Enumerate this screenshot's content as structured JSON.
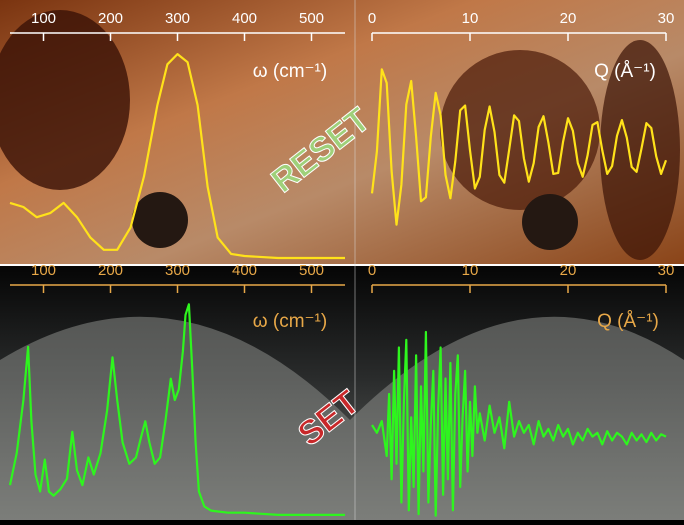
{
  "chart_data": [
    {
      "type": "line",
      "x_label": "ω (cm⁻¹)",
      "annotation": "RESET",
      "annotation_color": "#9fd07a",
      "color": "#ffe21a",
      "label_color": "#ffffff",
      "xlim": [
        50,
        550
      ],
      "xticks": [
        100,
        200,
        300,
        400,
        500
      ],
      "ylim": [
        0,
        1.02
      ],
      "x": [
        50,
        70,
        90,
        110,
        130,
        150,
        170,
        190,
        210,
        230,
        250,
        270,
        285,
        300,
        315,
        330,
        345,
        360,
        380,
        400,
        450,
        500,
        550
      ],
      "values": [
        0.27,
        0.25,
        0.2,
        0.22,
        0.27,
        0.2,
        0.1,
        0.04,
        0.04,
        0.15,
        0.4,
        0.75,
        0.95,
        1.0,
        0.96,
        0.75,
        0.35,
        0.1,
        0.02,
        0.01,
        0.0,
        0.0,
        0.0
      ]
    },
    {
      "type": "line",
      "x_label": "Q (Å⁻¹)",
      "color": "#ffe21a",
      "label_color": "#ffffff",
      "xlim": [
        0,
        30
      ],
      "xticks": [
        0,
        10,
        20,
        30
      ],
      "ylim": [
        -1.1,
        1.1
      ],
      "x": [
        0,
        0.5,
        1,
        1.5,
        2,
        2.5,
        3,
        3.5,
        4,
        4.5,
        5,
        5.5,
        6,
        6.5,
        7,
        7.5,
        8,
        8.5,
        9,
        9.5,
        10,
        10.5,
        11,
        11.5,
        12,
        12.5,
        13,
        13.5,
        14,
        14.5,
        15,
        15.5,
        16,
        16.5,
        17,
        17.5,
        18,
        18.5,
        19,
        19.5,
        20,
        20.5,
        21,
        21.5,
        22,
        22.5,
        23,
        23.5,
        24,
        24.5,
        25,
        25.5,
        26,
        26.5,
        27,
        27.5,
        28,
        28.5,
        29,
        29.5,
        30
      ],
      "values": [
        -0.47,
        -0.04,
        0.8,
        0.66,
        -0.24,
        -0.79,
        -0.38,
        0.44,
        0.68,
        0.11,
        -0.55,
        -0.51,
        0.11,
        0.56,
        0.33,
        -0.28,
        -0.52,
        -0.14,
        0.38,
        0.43,
        -0.03,
        -0.42,
        -0.3,
        0.18,
        0.42,
        0.16,
        -0.28,
        -0.36,
        -0.02,
        0.33,
        0.27,
        -0.11,
        -0.35,
        -0.16,
        0.21,
        0.32,
        0.05,
        -0.27,
        -0.26,
        0.06,
        0.3,
        0.17,
        -0.16,
        -0.3,
        -0.08,
        0.23,
        0.26,
        -0.03,
        -0.27,
        -0.19,
        0.12,
        0.28,
        0.1,
        -0.2,
        -0.25,
        -0.01,
        0.25,
        0.2,
        -0.09,
        -0.27,
        -0.13
      ]
    },
    {
      "type": "line",
      "x_label": "ω (cm⁻¹)",
      "annotation": "SET",
      "annotation_color": "#c8282a",
      "color": "#2ef51e",
      "label_color": "#e8a848",
      "xlim": [
        50,
        550
      ],
      "xticks": [
        100,
        200,
        300,
        400,
        500
      ],
      "ylim": [
        0,
        1.02
      ],
      "x": [
        50,
        60,
        70,
        77,
        82,
        88,
        95,
        102,
        108,
        115,
        125,
        135,
        143,
        150,
        158,
        167,
        175,
        185,
        195,
        203,
        210,
        218,
        228,
        238,
        246,
        252,
        258,
        266,
        274,
        282,
        290,
        296,
        302,
        308,
        312,
        317,
        322,
        327,
        332,
        340,
        350,
        375,
        400,
        450,
        500,
        550
      ],
      "values": [
        0.15,
        0.3,
        0.55,
        0.8,
        0.45,
        0.2,
        0.12,
        0.27,
        0.12,
        0.1,
        0.13,
        0.18,
        0.4,
        0.22,
        0.15,
        0.28,
        0.2,
        0.3,
        0.5,
        0.75,
        0.55,
        0.35,
        0.25,
        0.28,
        0.38,
        0.45,
        0.35,
        0.25,
        0.28,
        0.45,
        0.65,
        0.55,
        0.6,
        0.78,
        0.95,
        1.0,
        0.7,
        0.35,
        0.12,
        0.05,
        0.03,
        0.02,
        0.02,
        0.01,
        0.01,
        0.01
      ]
    },
    {
      "type": "line",
      "x_label": "Q (Å⁻¹)",
      "color": "#2ef51e",
      "label_color": "#e8a848",
      "xlim": [
        0,
        30
      ],
      "xticks": [
        0,
        10,
        20,
        30
      ],
      "ylim": [
        -1,
        2.2
      ],
      "x": [
        0,
        0.5,
        1,
        1.5,
        1.75,
        2,
        2.25,
        2.5,
        2.75,
        3,
        3.25,
        3.5,
        3.75,
        4,
        4.25,
        4.5,
        4.75,
        5,
        5.25,
        5.5,
        5.75,
        6,
        6.25,
        6.5,
        6.75,
        7,
        7.25,
        7.5,
        7.75,
        8,
        8.25,
        8.5,
        8.75,
        9,
        9.25,
        9.5,
        9.75,
        10,
        10.25,
        10.5,
        10.75,
        11,
        11.5,
        12,
        12.5,
        13,
        13.5,
        14,
        14.5,
        15,
        15.5,
        16,
        16.5,
        17,
        17.5,
        18,
        18.5,
        19,
        19.5,
        20,
        20.5,
        21,
        21.5,
        22,
        22.5,
        23,
        23.5,
        24,
        24.5,
        25,
        25.5,
        26,
        26.5,
        27,
        27.5,
        28,
        28.5,
        29,
        29.5,
        30
      ],
      "values": [
        0.2,
        0.1,
        0.25,
        -0.2,
        0.6,
        -0.5,
        0.9,
        -0.3,
        1.2,
        -0.8,
        0.5,
        1.3,
        -0.9,
        0.3,
        -0.6,
        1.1,
        -0.95,
        0.7,
        -0.4,
        1.4,
        -0.8,
        0.2,
        0.9,
        -0.97,
        0.4,
        1.2,
        -0.7,
        0.8,
        -0.5,
        1.0,
        -0.9,
        0.6,
        1.1,
        -0.6,
        0.3,
        0.9,
        -0.4,
        0.5,
        -0.2,
        0.7,
        0.1,
        0.35,
        0.0,
        0.45,
        0.1,
        0.3,
        -0.1,
        0.5,
        0.05,
        0.25,
        0.1,
        0.2,
        -0.05,
        0.25,
        0.05,
        0.15,
        0.0,
        0.2,
        0.05,
        0.15,
        -0.05,
        0.1,
        0.0,
        0.15,
        0.05,
        0.1,
        -0.05,
        0.12,
        0.0,
        0.1,
        0.05,
        -0.05,
        0.1,
        0.0,
        0.08,
        -0.02,
        0.1,
        0.0,
        0.08,
        0.05
      ]
    }
  ]
}
